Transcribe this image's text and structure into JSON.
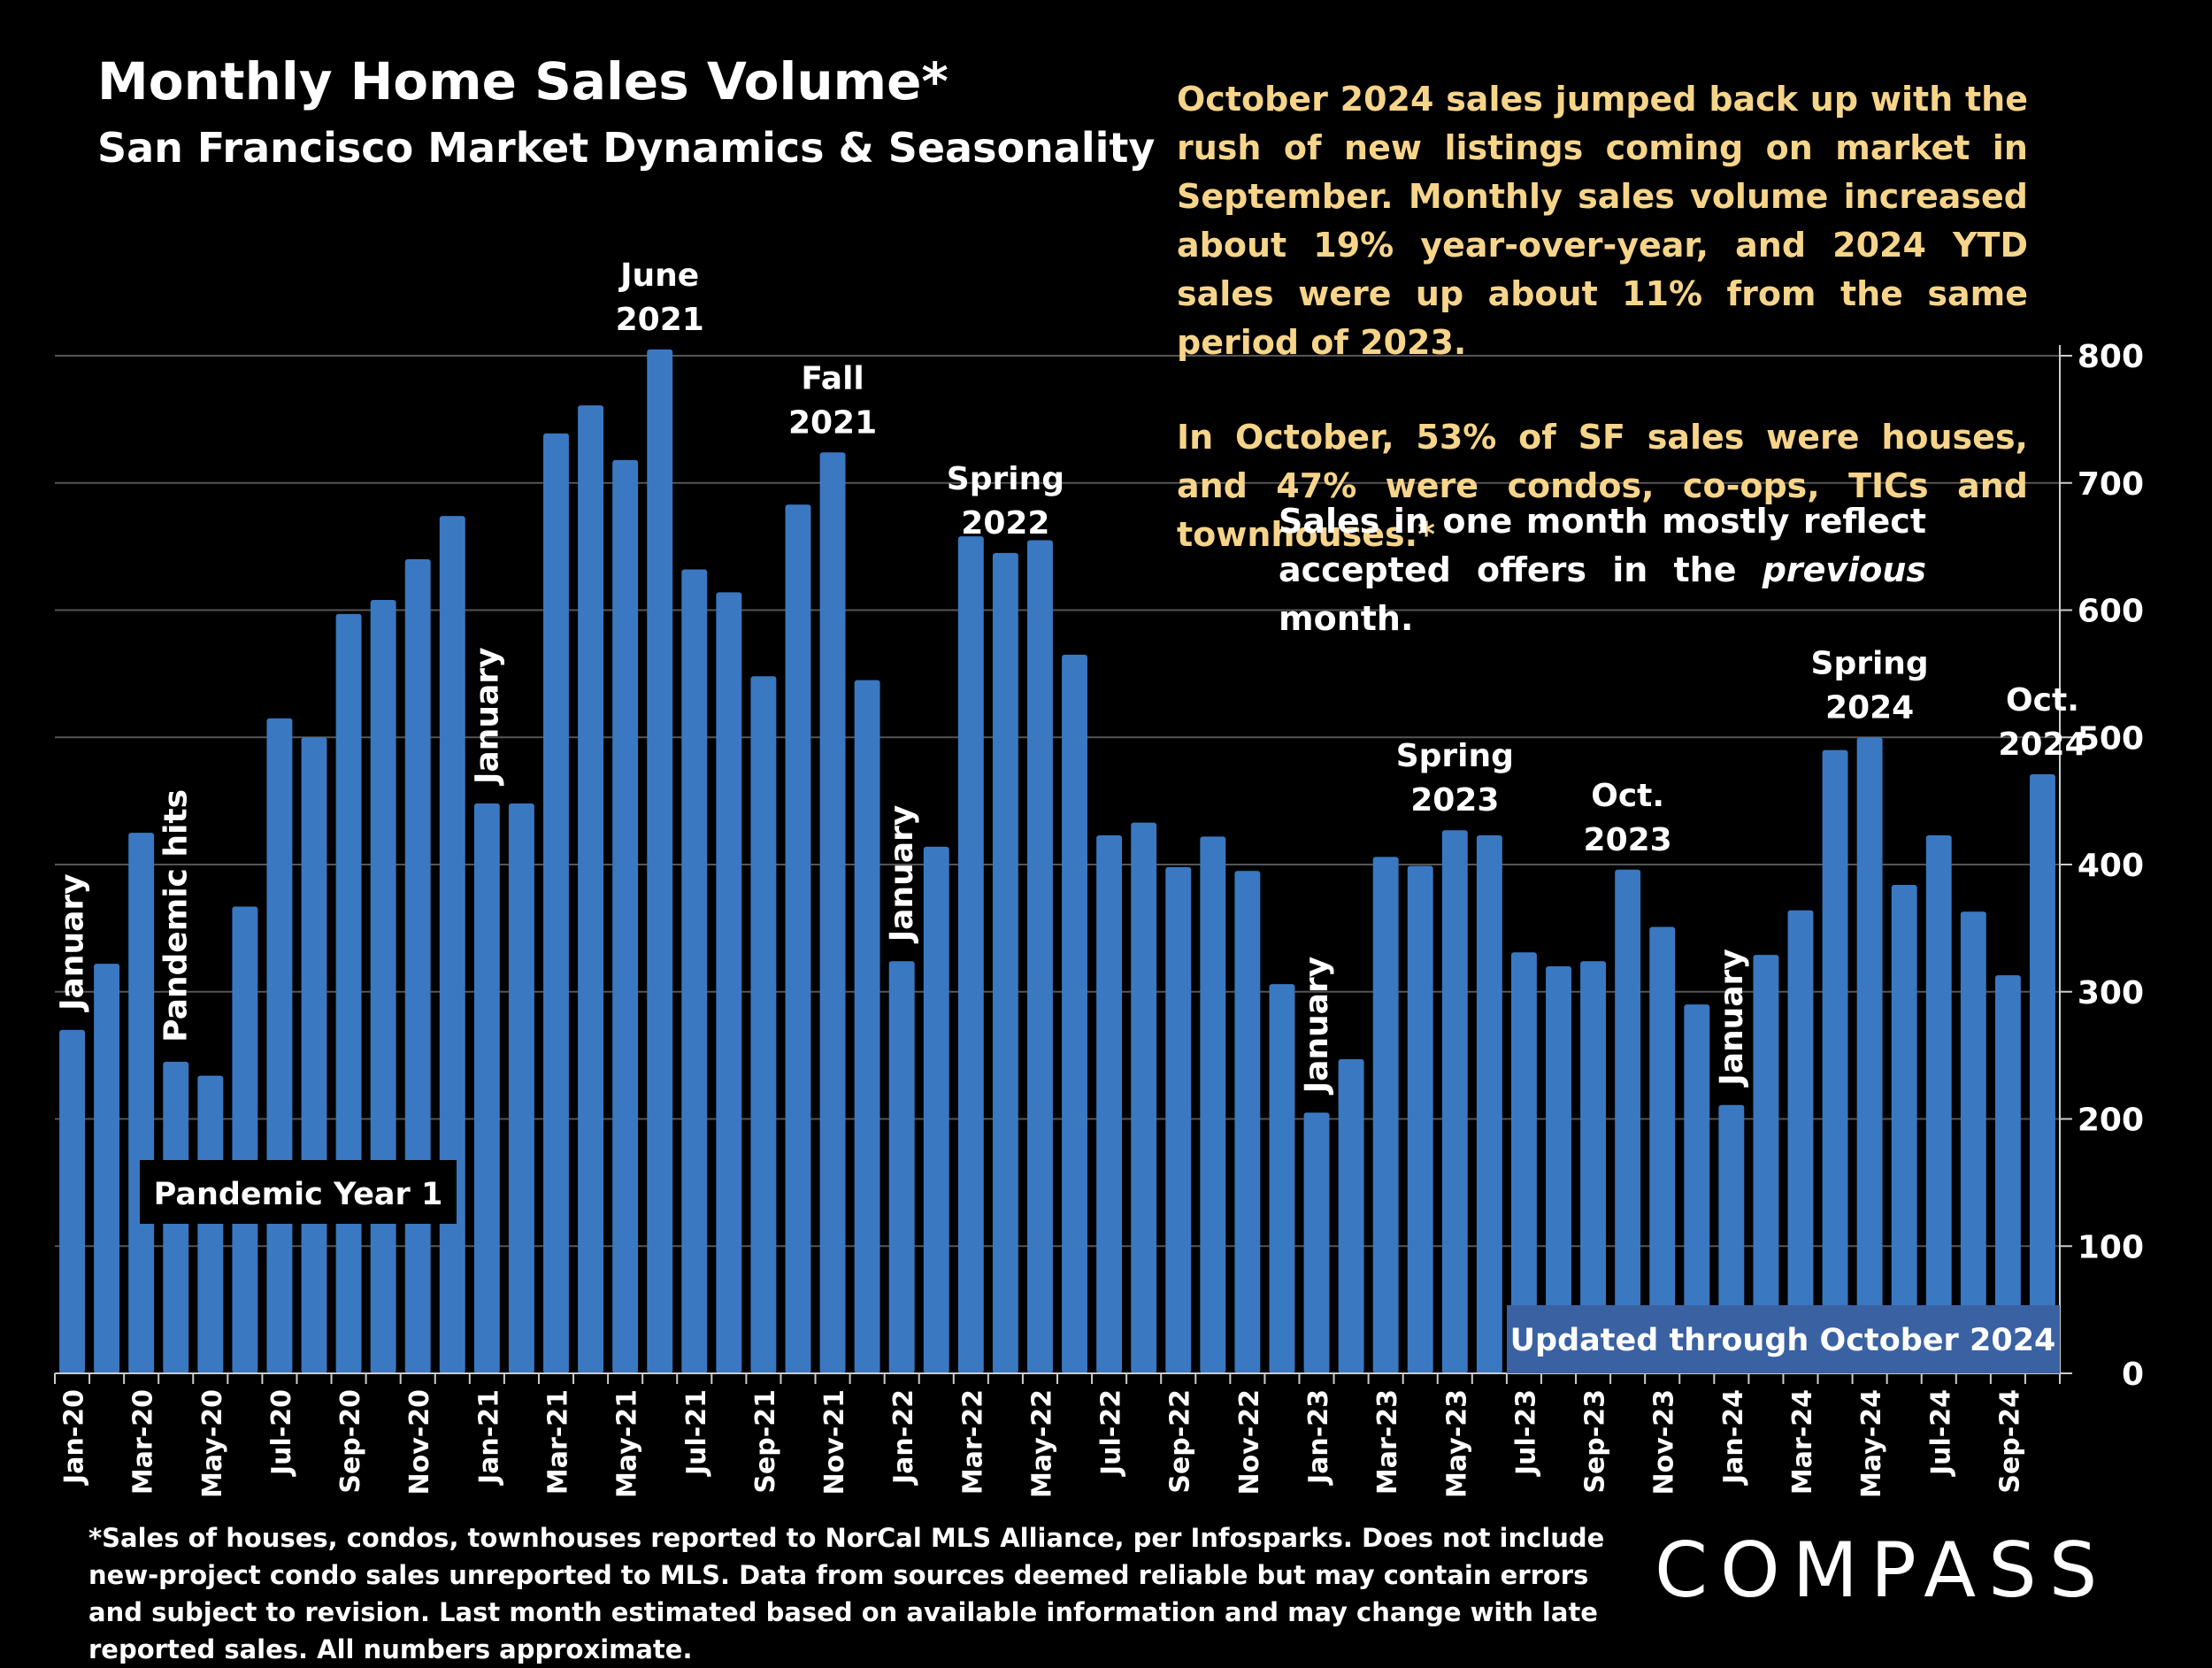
{
  "title": "Monthly Home Sales Volume*",
  "subtitle": "San Francisco Market Dynamics & Seasonality",
  "commentary": [
    "October 2024 sales jumped back up with the rush of new listings coming on market in September. Monthly sales volume increased about 19% year-over-year, and 2024 YTD sales were up about 11% from the same period of 2023.",
    "In October, 53% of SF sales were houses, and 47% were condos, co-ops, TICs and townhouses.*"
  ],
  "note": {
    "before": "Sales in one month mostly reflect accepted offers in the ",
    "emphasis": "previous",
    "after": " month."
  },
  "footnote": "*Sales of houses, condos, townhouses reported to NorCal MLS Alliance, per Infosparks. Does not include new-project condo sales unreported to MLS. Data from sources deemed reliable but may contain errors and subject to revision. Last month estimated based on available information and may change with late reported sales. All numbers approximate.",
  "logo": "COMPASS",
  "colors": {
    "bar": "#3a78c2",
    "commentary": "#f6d489",
    "updated_box": "#3a62a3"
  },
  "chart_data": {
    "type": "bar",
    "categories": [
      "Jan-20",
      "Feb-20",
      "Mar-20",
      "Apr-20",
      "May-20",
      "Jun-20",
      "Jul-20",
      "Aug-20",
      "Sep-20",
      "Oct-20",
      "Nov-20",
      "Dec-20",
      "Jan-21",
      "Feb-21",
      "Mar-21",
      "Apr-21",
      "May-21",
      "Jun-21",
      "Jul-21",
      "Aug-21",
      "Sep-21",
      "Oct-21",
      "Nov-21",
      "Dec-21",
      "Jan-22",
      "Feb-22",
      "Mar-22",
      "Apr-22",
      "May-22",
      "Jun-22",
      "Jul-22",
      "Aug-22",
      "Sep-22",
      "Oct-22",
      "Nov-22",
      "Dec-22",
      "Jan-23",
      "Feb-23",
      "Mar-23",
      "Apr-23",
      "May-23",
      "Jun-23",
      "Jul-23",
      "Aug-23",
      "Sep-23",
      "Oct-23",
      "Nov-23",
      "Dec-23",
      "Jan-24",
      "Feb-24",
      "Mar-24",
      "Apr-24",
      "May-24",
      "Jun-24",
      "Jul-24",
      "Aug-24",
      "Sep-24",
      "Oct-24"
    ],
    "tick_labels": [
      "Jan-20",
      "Mar-20",
      "May-20",
      "Jul-20",
      "Sep-20",
      "Nov-20",
      "Jan-21",
      "Mar-21",
      "May-21",
      "Jul-21",
      "Sep-21",
      "Nov-21",
      "Jan-22",
      "Mar-22",
      "May-22",
      "Jul-22",
      "Sep-22",
      "Nov-22",
      "Jan-23",
      "Mar-23",
      "May-23",
      "Jul-23",
      "Sep-23",
      "Nov-23",
      "Jan-24",
      "Mar-24",
      "May-24",
      "Jul-24",
      "Sep-24"
    ],
    "values": [
      270,
      322,
      425,
      245,
      234,
      367,
      515,
      500,
      597,
      608,
      640,
      674,
      448,
      448,
      739,
      761,
      718,
      805,
      632,
      614,
      548,
      683,
      724,
      545,
      324,
      414,
      658,
      645,
      655,
      565,
      423,
      433,
      398,
      422,
      395,
      306,
      205,
      247,
      406,
      399,
      427,
      423,
      331,
      320,
      324,
      396,
      351,
      290,
      211,
      329,
      364,
      490,
      500,
      384,
      423,
      363,
      313,
      471
    ],
    "ylim": [
      0,
      800
    ],
    "yticks": [
      0,
      100,
      200,
      300,
      400,
      500,
      600,
      700,
      800
    ],
    "grid": true,
    "y_axis_side": "right",
    "annotations": [
      {
        "index": 0,
        "text": "January",
        "rotated": true
      },
      {
        "index": 3,
        "text": "Pandemic hits",
        "rotated": true
      },
      {
        "index": 12,
        "text": "January",
        "rotated": true
      },
      {
        "index": 17,
        "lines": [
          "June",
          "2021"
        ]
      },
      {
        "index": 22,
        "lines": [
          "Fall",
          "2021"
        ]
      },
      {
        "index": 24,
        "text": "January",
        "rotated": true
      },
      {
        "index": 27,
        "lines": [
          "Spring",
          "2022"
        ]
      },
      {
        "index": 36,
        "text": "January",
        "rotated": true
      },
      {
        "index": 40,
        "lines": [
          "Spring",
          "2023"
        ]
      },
      {
        "index": 45,
        "lines": [
          "Oct.",
          "2023"
        ]
      },
      {
        "index": 48,
        "text": "January",
        "rotated": true
      },
      {
        "index": 52,
        "lines": [
          "Spring",
          "2024"
        ]
      },
      {
        "index": 57,
        "lines": [
          "Oct.",
          "2024"
        ]
      }
    ],
    "pandemic_label": "Pandemic Year 1",
    "updated_label": "Updated through October 2024"
  }
}
